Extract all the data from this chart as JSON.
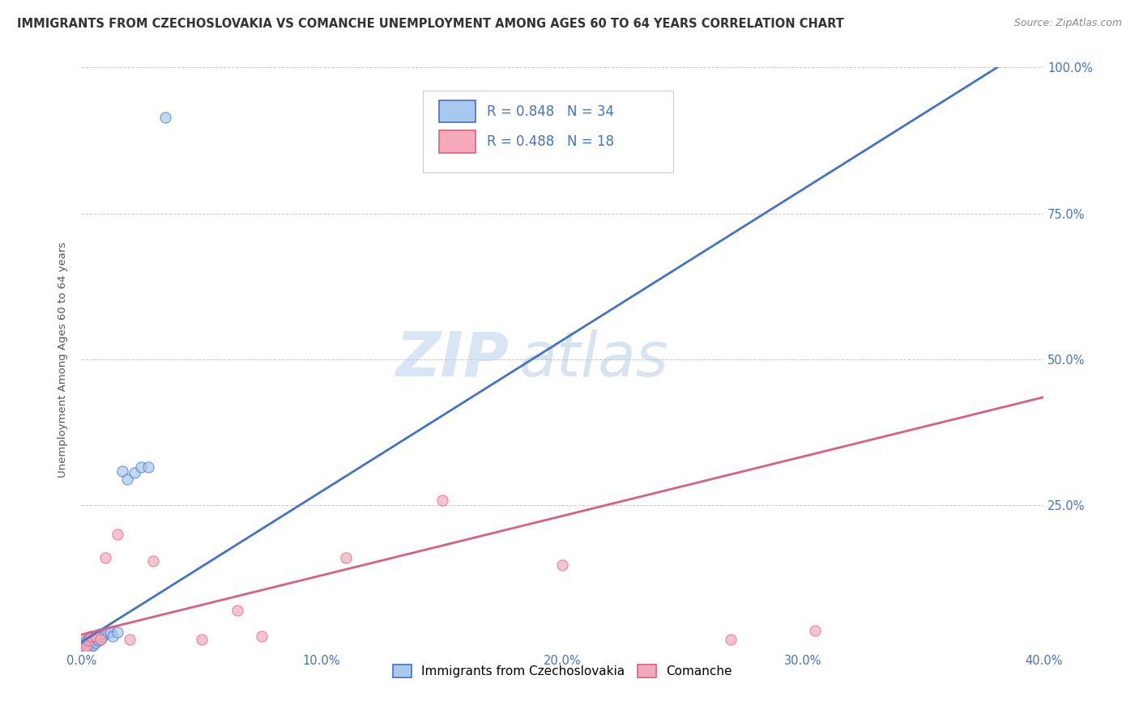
{
  "title": "IMMIGRANTS FROM CZECHOSLOVAKIA VS COMANCHE UNEMPLOYMENT AMONG AGES 60 TO 64 YEARS CORRELATION CHART",
  "source": "Source: ZipAtlas.com",
  "ylabel": "Unemployment Among Ages 60 to 64 years",
  "xlim": [
    0.0,
    0.4
  ],
  "ylim": [
    0.0,
    1.0
  ],
  "xticks": [
    0.0,
    0.1,
    0.2,
    0.3,
    0.4
  ],
  "yticks": [
    0.0,
    0.25,
    0.5,
    0.75,
    1.0
  ],
  "xticklabels": [
    "0.0%",
    "10.0%",
    "20.0%",
    "30.0%",
    "40.0%"
  ],
  "yticklabels_right": [
    "",
    "25.0%",
    "50.0%",
    "75.0%",
    "100.0%"
  ],
  "watermark_zip": "ZIP",
  "watermark_atlas": "atlas",
  "blue_R": 0.848,
  "blue_N": 34,
  "pink_R": 0.488,
  "pink_N": 18,
  "blue_color": "#A8C8EE",
  "blue_line_color": "#4472C4",
  "pink_color": "#F4AABB",
  "pink_line_color": "#D96080",
  "legend_label_blue": "Immigrants from Czechoslovakia",
  "legend_label_pink": "Comanche",
  "blue_scatter_x": [
    0.001,
    0.001,
    0.001,
    0.002,
    0.002,
    0.002,
    0.003,
    0.003,
    0.003,
    0.003,
    0.004,
    0.004,
    0.004,
    0.005,
    0.005,
    0.005,
    0.006,
    0.006,
    0.007,
    0.007,
    0.008,
    0.008,
    0.009,
    0.01,
    0.011,
    0.012,
    0.013,
    0.015,
    0.017,
    0.019,
    0.022,
    0.025,
    0.028,
    0.035
  ],
  "blue_scatter_y": [
    0.005,
    0.01,
    0.015,
    0.008,
    0.012,
    0.018,
    0.005,
    0.01,
    0.015,
    0.02,
    0.008,
    0.015,
    0.022,
    0.01,
    0.018,
    0.025,
    0.015,
    0.022,
    0.018,
    0.028,
    0.02,
    0.03,
    0.025,
    0.03,
    0.032,
    0.032,
    0.025,
    0.032,
    0.308,
    0.295,
    0.305,
    0.315,
    0.315,
    0.915
  ],
  "blue_line_x": [
    0.0,
    0.4
  ],
  "blue_line_y": [
    0.015,
    1.05
  ],
  "pink_scatter_x": [
    0.001,
    0.002,
    0.003,
    0.004,
    0.006,
    0.008,
    0.01,
    0.015,
    0.02,
    0.03,
    0.05,
    0.065,
    0.075,
    0.11,
    0.15,
    0.2,
    0.27,
    0.305
  ],
  "pink_scatter_y": [
    0.005,
    0.008,
    0.018,
    0.025,
    0.025,
    0.02,
    0.16,
    0.2,
    0.02,
    0.155,
    0.02,
    0.07,
    0.025,
    0.16,
    0.258,
    0.148,
    0.02,
    0.035
  ],
  "pink_line_x": [
    0.0,
    0.4
  ],
  "pink_line_y": [
    0.028,
    0.435
  ],
  "background_color": "#FFFFFF",
  "grid_color": "#BBBBBB",
  "title_color": "#333333",
  "axis_label_color": "#555555",
  "tick_label_color": "#4472C4",
  "title_fontsize": 10.5,
  "source_fontsize": 9,
  "axis_label_fontsize": 9.5,
  "tick_fontsize": 10.5,
  "legend_fontsize": 12,
  "watermark_fontsize_zip": 55,
  "watermark_fontsize_atlas": 55
}
